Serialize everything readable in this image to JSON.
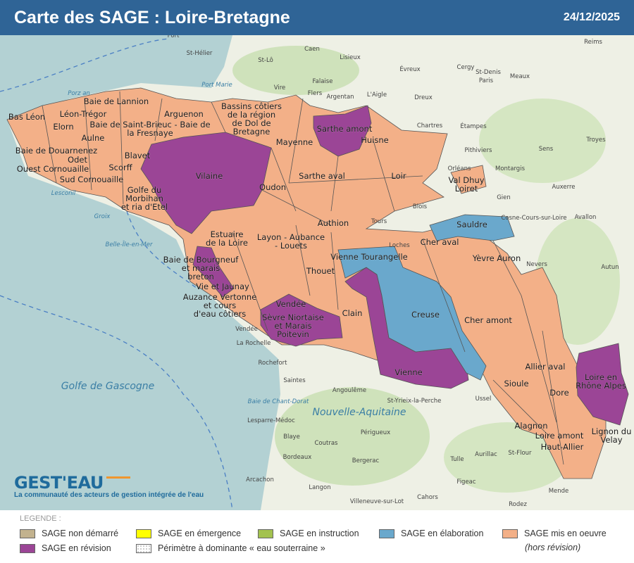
{
  "header": {
    "title": "Carte des SAGE : Loire-Bretagne",
    "date": "24/12/2025"
  },
  "colors": {
    "header": "#2f6496",
    "non_demarre": "#c2b28e",
    "emergence": "#ffff00",
    "instruction": "#a3c24f",
    "elaboration": "#6aa8cc",
    "mis_en_oeuvre": "#f3b088",
    "revision": "#9b4596"
  },
  "logo": {
    "brand": "GEST'EAU",
    "tagline": "La communauté des acteurs de gestion intégrée de l'eau"
  },
  "legend": {
    "title": "LEGENDE :",
    "items": [
      {
        "label": "SAGE non démarré"
      },
      {
        "label": "SAGE en émergence"
      },
      {
        "label": "SAGE en instruction"
      },
      {
        "label": "SAGE en élaboration"
      },
      {
        "label": "SAGE mis en oeuvre"
      },
      {
        "label": "SAGE en révision"
      },
      {
        "label": "Périmètre à dominante « eau souterraine »"
      }
    ],
    "subnote": "(hors révision)"
  },
  "sages": [
    {
      "lines": [
        "Bas Léon"
      ],
      "status": "mis en oeuvre"
    },
    {
      "lines": [
        "Baie de Lannion"
      ],
      "status": "mis en oeuvre"
    },
    {
      "lines": [
        "Léon-Trégor"
      ],
      "status": "mis en oeuvre"
    },
    {
      "lines": [
        "Elorn"
      ],
      "status": "mis en oeuvre"
    },
    {
      "lines": [
        "Baie de Saint-Brieuc - Baie de",
        "la Fresnaye"
      ],
      "status": "mis en oeuvre"
    },
    {
      "lines": [
        "Arguenon"
      ],
      "status": "mis en oeuvre"
    },
    {
      "lines": [
        "Bassins côtiers",
        "de la région",
        "de Dol de",
        "Bretagne"
      ],
      "status": "mis en oeuvre"
    },
    {
      "lines": [
        "Aulne"
      ],
      "status": "mis en oeuvre"
    },
    {
      "lines": [
        "Baie de Douarnenez"
      ],
      "status": "mis en oeuvre"
    },
    {
      "lines": [
        "Odet"
      ],
      "status": "mis en oeuvre"
    },
    {
      "lines": [
        "Ouest Cornouaille"
      ],
      "status": "mis en oeuvre"
    },
    {
      "lines": [
        "Blavet"
      ],
      "status": "mis en oeuvre"
    },
    {
      "lines": [
        "Scorff"
      ],
      "status": "mis en oeuvre"
    },
    {
      "lines": [
        "Sud Cornouaille"
      ],
      "status": "mis en oeuvre"
    },
    {
      "lines": [
        "Golfe du",
        "Morbihan",
        "et ria d'Etel"
      ],
      "status": "mis en oeuvre"
    },
    {
      "lines": [
        "Vilaine"
      ],
      "status": "en révision"
    },
    {
      "lines": [
        "Mayenne"
      ],
      "status": "mis en oeuvre"
    },
    {
      "lines": [
        "Sarthe amont"
      ],
      "status": "en révision"
    },
    {
      "lines": [
        "Huisne"
      ],
      "status": "mis en oeuvre"
    },
    {
      "lines": [
        "Sarthe aval"
      ],
      "status": "mis en oeuvre"
    },
    {
      "lines": [
        "Loir"
      ],
      "status": "mis en oeuvre"
    },
    {
      "lines": [
        "Val Dhuy",
        "Loiret"
      ],
      "status": "mis en oeuvre"
    },
    {
      "lines": [
        "Oudon"
      ],
      "status": "mis en oeuvre"
    },
    {
      "lines": [
        "Authion"
      ],
      "status": "mis en oeuvre"
    },
    {
      "lines": [
        "Estuaire",
        "de la Loire"
      ],
      "status": "mis en oeuvre"
    },
    {
      "lines": [
        "Layon - Aubance",
        "- Louets"
      ],
      "status": "mis en oeuvre"
    },
    {
      "lines": [
        "Baie de Bourgneuf",
        "et marais",
        "breton"
      ],
      "status": "en révision"
    },
    {
      "lines": [
        "Thouet"
      ],
      "status": "mis en oeuvre"
    },
    {
      "lines": [
        "Vienne Tourangelle"
      ],
      "status": "en élaboration"
    },
    {
      "lines": [
        "Cher aval"
      ],
      "status": "mis en oeuvre"
    },
    {
      "lines": [
        "Sauldre"
      ],
      "status": "en élaboration"
    },
    {
      "lines": [
        "Yèvre Auron"
      ],
      "status": "mis en oeuvre"
    },
    {
      "lines": [
        "Vie et Jaunay"
      ],
      "status": "en révision"
    },
    {
      "lines": [
        "Auzance Vertonne",
        "et cours",
        "d'eau côtiers"
      ],
      "status": "mis en oeuvre"
    },
    {
      "lines": [
        "Vendée"
      ],
      "status": "en révision"
    },
    {
      "lines": [
        "Sèvre Niortaise",
        "et Marais",
        "Poitevin"
      ],
      "status": "en révision"
    },
    {
      "lines": [
        "Clain"
      ],
      "status": "mis en oeuvre"
    },
    {
      "lines": [
        "Creuse"
      ],
      "status": "en élaboration"
    },
    {
      "lines": [
        "Cher amont"
      ],
      "status": "mis en oeuvre"
    },
    {
      "lines": [
        "Vienne"
      ],
      "status": "en révision"
    },
    {
      "lines": [
        "Sioule"
      ],
      "status": "mis en oeuvre"
    },
    {
      "lines": [
        "Allier aval"
      ],
      "status": "mis en oeuvre"
    },
    {
      "lines": [
        "Dore"
      ],
      "status": "mis en oeuvre"
    },
    {
      "lines": [
        "Loire en",
        "Rhône Alpes"
      ],
      "status": "en révision"
    },
    {
      "lines": [
        "Alagnon"
      ],
      "status": "mis en oeuvre"
    },
    {
      "lines": [
        "Loire amont"
      ],
      "status": "mis en oeuvre"
    },
    {
      "lines": [
        "Haut-Allier"
      ],
      "status": "mis en oeuvre"
    },
    {
      "lines": [
        "Lignon du",
        "Velay"
      ],
      "status": "mis en oeuvre"
    }
  ],
  "places": [
    "Port",
    "St-Hélier",
    "Caen",
    "St-Lô",
    "Vire",
    "Flers",
    "Falaise",
    "Argentan",
    "L'Aigle",
    "Lisieux",
    "Évreux",
    "Dreux",
    "Chartres",
    "Paris",
    "Cergy",
    "St-Denis",
    "Meaux",
    "Étampes",
    "Pithiviers",
    "Montargis",
    "Orléans",
    "Blois",
    "Tours",
    "Loches",
    "Gien",
    "Nevers",
    "Cosne-Cours-sur-Loire",
    "Auxerre",
    "Avallon",
    "Autun",
    "Sens",
    "Troyes",
    "Reims",
    "Rochefort",
    "La Rochelle",
    "Saintes",
    "Angoulême",
    "St-Yrieix-la-Perche",
    "Périgueux",
    "Tulle",
    "Ussel",
    "Aurillac",
    "St-Flour",
    "Mende",
    "Figeac",
    "Rodez",
    "Cahors",
    "Bergerac",
    "Bordeaux",
    "Blaye",
    "Coutras",
    "Lesparre-Médoc",
    "Arcachon",
    "Langon",
    "Villeneuve-sur-Lot",
    "Groix",
    "Belle-Île-en-Mer",
    "Port Marie",
    "Porz an",
    "Lesconil",
    "Golfe de Gascogne",
    "Nouvelle-Aquitaine",
    "Baie de Chant-Dorat",
    "Vendée"
  ]
}
